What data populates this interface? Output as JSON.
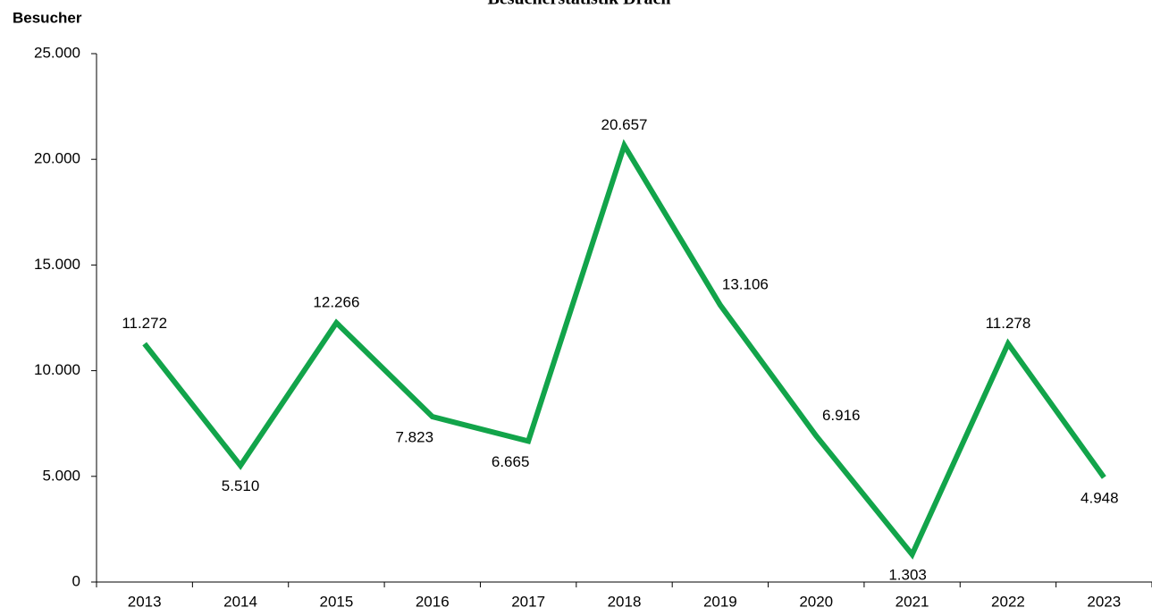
{
  "chart_data": {
    "type": "line",
    "title": "Besucherstatistik Drach",
    "y_label": "Besucher",
    "categories": [
      "2013",
      "2014",
      "2015",
      "2016",
      "2017",
      "2018",
      "2019",
      "2020",
      "2021",
      "2022",
      "2023"
    ],
    "values": [
      11272,
      5510,
      12266,
      7823,
      6665,
      20657,
      13106,
      6916,
      1303,
      11278,
      4948
    ],
    "value_labels": [
      "11.272",
      "5.510",
      "12.266",
      "7.823",
      "6.665",
      "20.657",
      "13.106",
      "6.916",
      "1.303",
      "11.278",
      "4.948"
    ],
    "color": "#12a44a",
    "ylim": [
      0,
      25000
    ],
    "yticks": [
      0,
      {
        "value": 5000,
        "label": "5.000"
      },
      {
        "value": 10000,
        "label": "10.000"
      },
      {
        "value": 15000,
        "label": "15.000"
      },
      {
        "value": 20000,
        "label": "20.000"
      },
      {
        "value": 25000,
        "label": "25.000"
      }
    ],
    "grid": false
  }
}
